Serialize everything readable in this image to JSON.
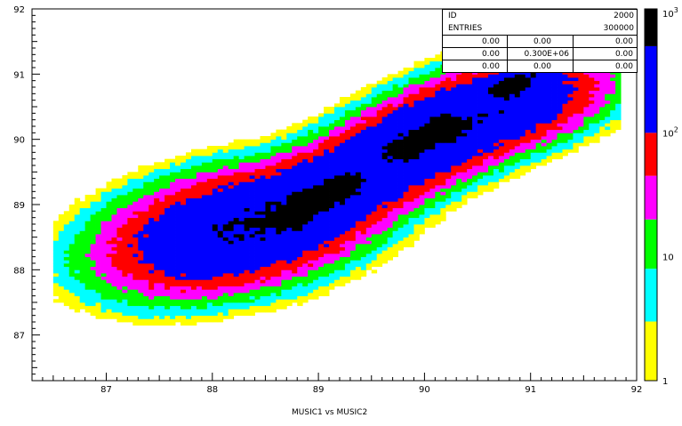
{
  "chart_data": {
    "type": "heatmap",
    "title": "",
    "xlabel": "MUSIC1 vs MUSIC2",
    "ylabel": "",
    "xlim": [
      86.3,
      92
    ],
    "ylim": [
      86.3,
      92
    ],
    "x_ticks": [
      "87",
      "88",
      "89",
      "90",
      "91",
      "92"
    ],
    "y_ticks": [
      "87",
      "88",
      "89",
      "90",
      "91",
      "92"
    ],
    "color_scale": "log",
    "color_scale_range": [
      1,
      1000
    ],
    "color_scale_labels": [
      {
        "value": 1,
        "label": "1"
      },
      {
        "value": 10,
        "label": "10"
      },
      {
        "value": 100,
        "label": "10",
        "exponent": "2"
      },
      {
        "value": 1000,
        "label": "10",
        "exponent": "3"
      }
    ],
    "color_levels": [
      "#ffffff",
      "#ffff00",
      "#00ffff",
      "#00ff00",
      "#ff00ff",
      "#ff0000",
      "#0000ff",
      "#000000"
    ],
    "level_thresholds": [
      1,
      3,
      8,
      20,
      45,
      100,
      500
    ],
    "distribution": {
      "components": [
        {
          "x": 88.2,
          "y": 88.6,
          "sx": 0.55,
          "sy": 0.42,
          "rho": 0.35,
          "weight": 1.0
        },
        {
          "x": 89.0,
          "y": 89.1,
          "sx": 0.45,
          "sy": 0.4,
          "rho": 0.55,
          "weight": 0.9
        },
        {
          "x": 89.9,
          "y": 89.9,
          "sx": 0.45,
          "sy": 0.4,
          "rho": 0.55,
          "weight": 0.9
        },
        {
          "x": 90.7,
          "y": 90.5,
          "sx": 0.45,
          "sy": 0.35,
          "rho": 0.45,
          "weight": 0.85
        }
      ],
      "ridges": [
        {
          "x1": 88.7,
          "y1": 88.8,
          "x2": 89.25,
          "y2": 89.3
        },
        {
          "x1": 89.8,
          "y1": 89.85,
          "x2": 90.2,
          "y2": 90.2
        },
        {
          "x1": 90.75,
          "y1": 90.8,
          "x2": 91.3,
          "y2": 91.3
        }
      ]
    },
    "stats": {
      "id_label": "ID",
      "id_value": "2000",
      "entries_label": "ENTRIES",
      "entries_value": "300000",
      "grid": [
        [
          "0.00",
          "0.00",
          "0.00"
        ],
        [
          "0.00",
          "0.300E+06",
          "0.00"
        ],
        [
          "0.00",
          "0.00",
          "0.00"
        ]
      ]
    }
  }
}
